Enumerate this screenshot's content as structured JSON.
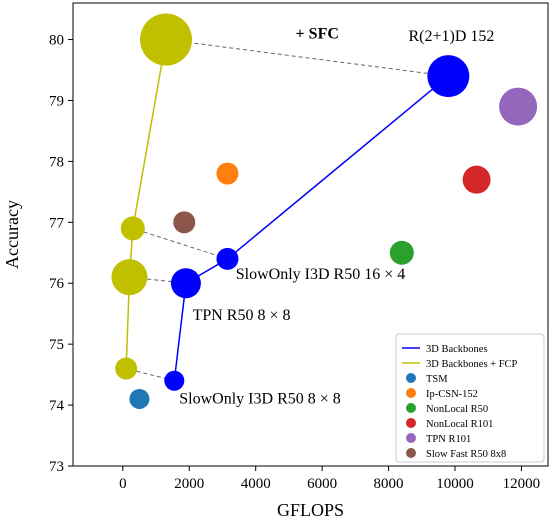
{
  "chart_data": {
    "type": "scatter",
    "xlabel": "GFLOPS",
    "ylabel": "Accuracy",
    "xlim": [
      -1500,
      12800
    ],
    "ylim": [
      73,
      80.6
    ],
    "xticks": [
      0,
      2000,
      4000,
      6000,
      8000,
      10000,
      12000
    ],
    "yticks": [
      73,
      74,
      75,
      76,
      77,
      78,
      79,
      80
    ],
    "grid": false,
    "legend_position": "lower-right",
    "lines": [
      {
        "name": "3D Backbones",
        "color": "#0000ff",
        "points": [
          {
            "x": 1550,
            "y": 74.4
          },
          {
            "x": 1900,
            "y": 76.0
          },
          {
            "x": 3150,
            "y": 76.4
          },
          {
            "x": 9800,
            "y": 79.4
          }
        ]
      },
      {
        "name": "3D Backbones + FCP",
        "color": "#c0c000",
        "points": [
          {
            "x": 100,
            "y": 74.6
          },
          {
            "x": 200,
            "y": 76.1
          },
          {
            "x": 300,
            "y": 76.9
          },
          {
            "x": 1300,
            "y": 80.0
          }
        ]
      }
    ],
    "markers": [
      {
        "x": 1550,
        "y": 74.4,
        "color": "#0000ff",
        "size": 10
      },
      {
        "x": 1900,
        "y": 76.0,
        "color": "#0000ff",
        "size": 15
      },
      {
        "x": 3150,
        "y": 76.4,
        "color": "#0000ff",
        "size": 11
      },
      {
        "x": 9800,
        "y": 79.4,
        "color": "#0000ff",
        "size": 21
      },
      {
        "x": 100,
        "y": 74.6,
        "color": "#c0c000",
        "size": 11
      },
      {
        "x": 200,
        "y": 76.1,
        "color": "#c0c000",
        "size": 18
      },
      {
        "x": 300,
        "y": 76.9,
        "color": "#c0c000",
        "size": 12
      },
      {
        "x": 1300,
        "y": 80.0,
        "color": "#c0c000",
        "size": 26
      }
    ],
    "series": [
      {
        "name": "TSM",
        "color": "#1f77b4",
        "points": [
          {
            "x": 500,
            "y": 74.1,
            "size": 10
          }
        ]
      },
      {
        "name": "Ip-CSN-152",
        "color": "#ff7f0e",
        "points": [
          {
            "x": 3150,
            "y": 77.8,
            "size": 11
          }
        ]
      },
      {
        "name": "NonLocal R50",
        "color": "#2ca02c",
        "points": [
          {
            "x": 8400,
            "y": 76.5,
            "size": 12
          }
        ]
      },
      {
        "name": "NonLocal R101",
        "color": "#d62728",
        "points": [
          {
            "x": 10650,
            "y": 77.7,
            "size": 14
          }
        ]
      },
      {
        "name": "TPN R101",
        "color": "#9467bd",
        "points": [
          {
            "x": 11900,
            "y": 78.9,
            "size": 19
          }
        ]
      },
      {
        "name": "Slow Fast R50 8x8",
        "color": "#8c564b",
        "points": [
          {
            "x": 1850,
            "y": 77.0,
            "size": 11
          }
        ]
      }
    ],
    "arrows": [
      {
        "from": [
          9800,
          79.4
        ],
        "to": [
          1300,
          80.0
        ]
      },
      {
        "from": [
          3150,
          76.4
        ],
        "to": [
          300,
          76.9
        ]
      },
      {
        "from": [
          1900,
          76.0
        ],
        "to": [
          200,
          76.1
        ]
      },
      {
        "from": [
          1550,
          74.4
        ],
        "to": [
          100,
          74.6
        ]
      }
    ],
    "annotations": [
      {
        "text": "+ SFC",
        "x": 5200,
        "y": 80.02,
        "bold": true
      },
      {
        "text": "R(2+1)D 152",
        "x": 8600,
        "y": 79.98
      },
      {
        "text": "SlowOnly I3D R50 16 × 4",
        "x": 3400,
        "y": 76.07
      },
      {
        "text": "TPN R50 8 × 8",
        "x": 2100,
        "y": 75.4
      },
      {
        "text": "SlowOnly I3D R50 8 × 8",
        "x": 1700,
        "y": 74.03
      }
    ]
  }
}
